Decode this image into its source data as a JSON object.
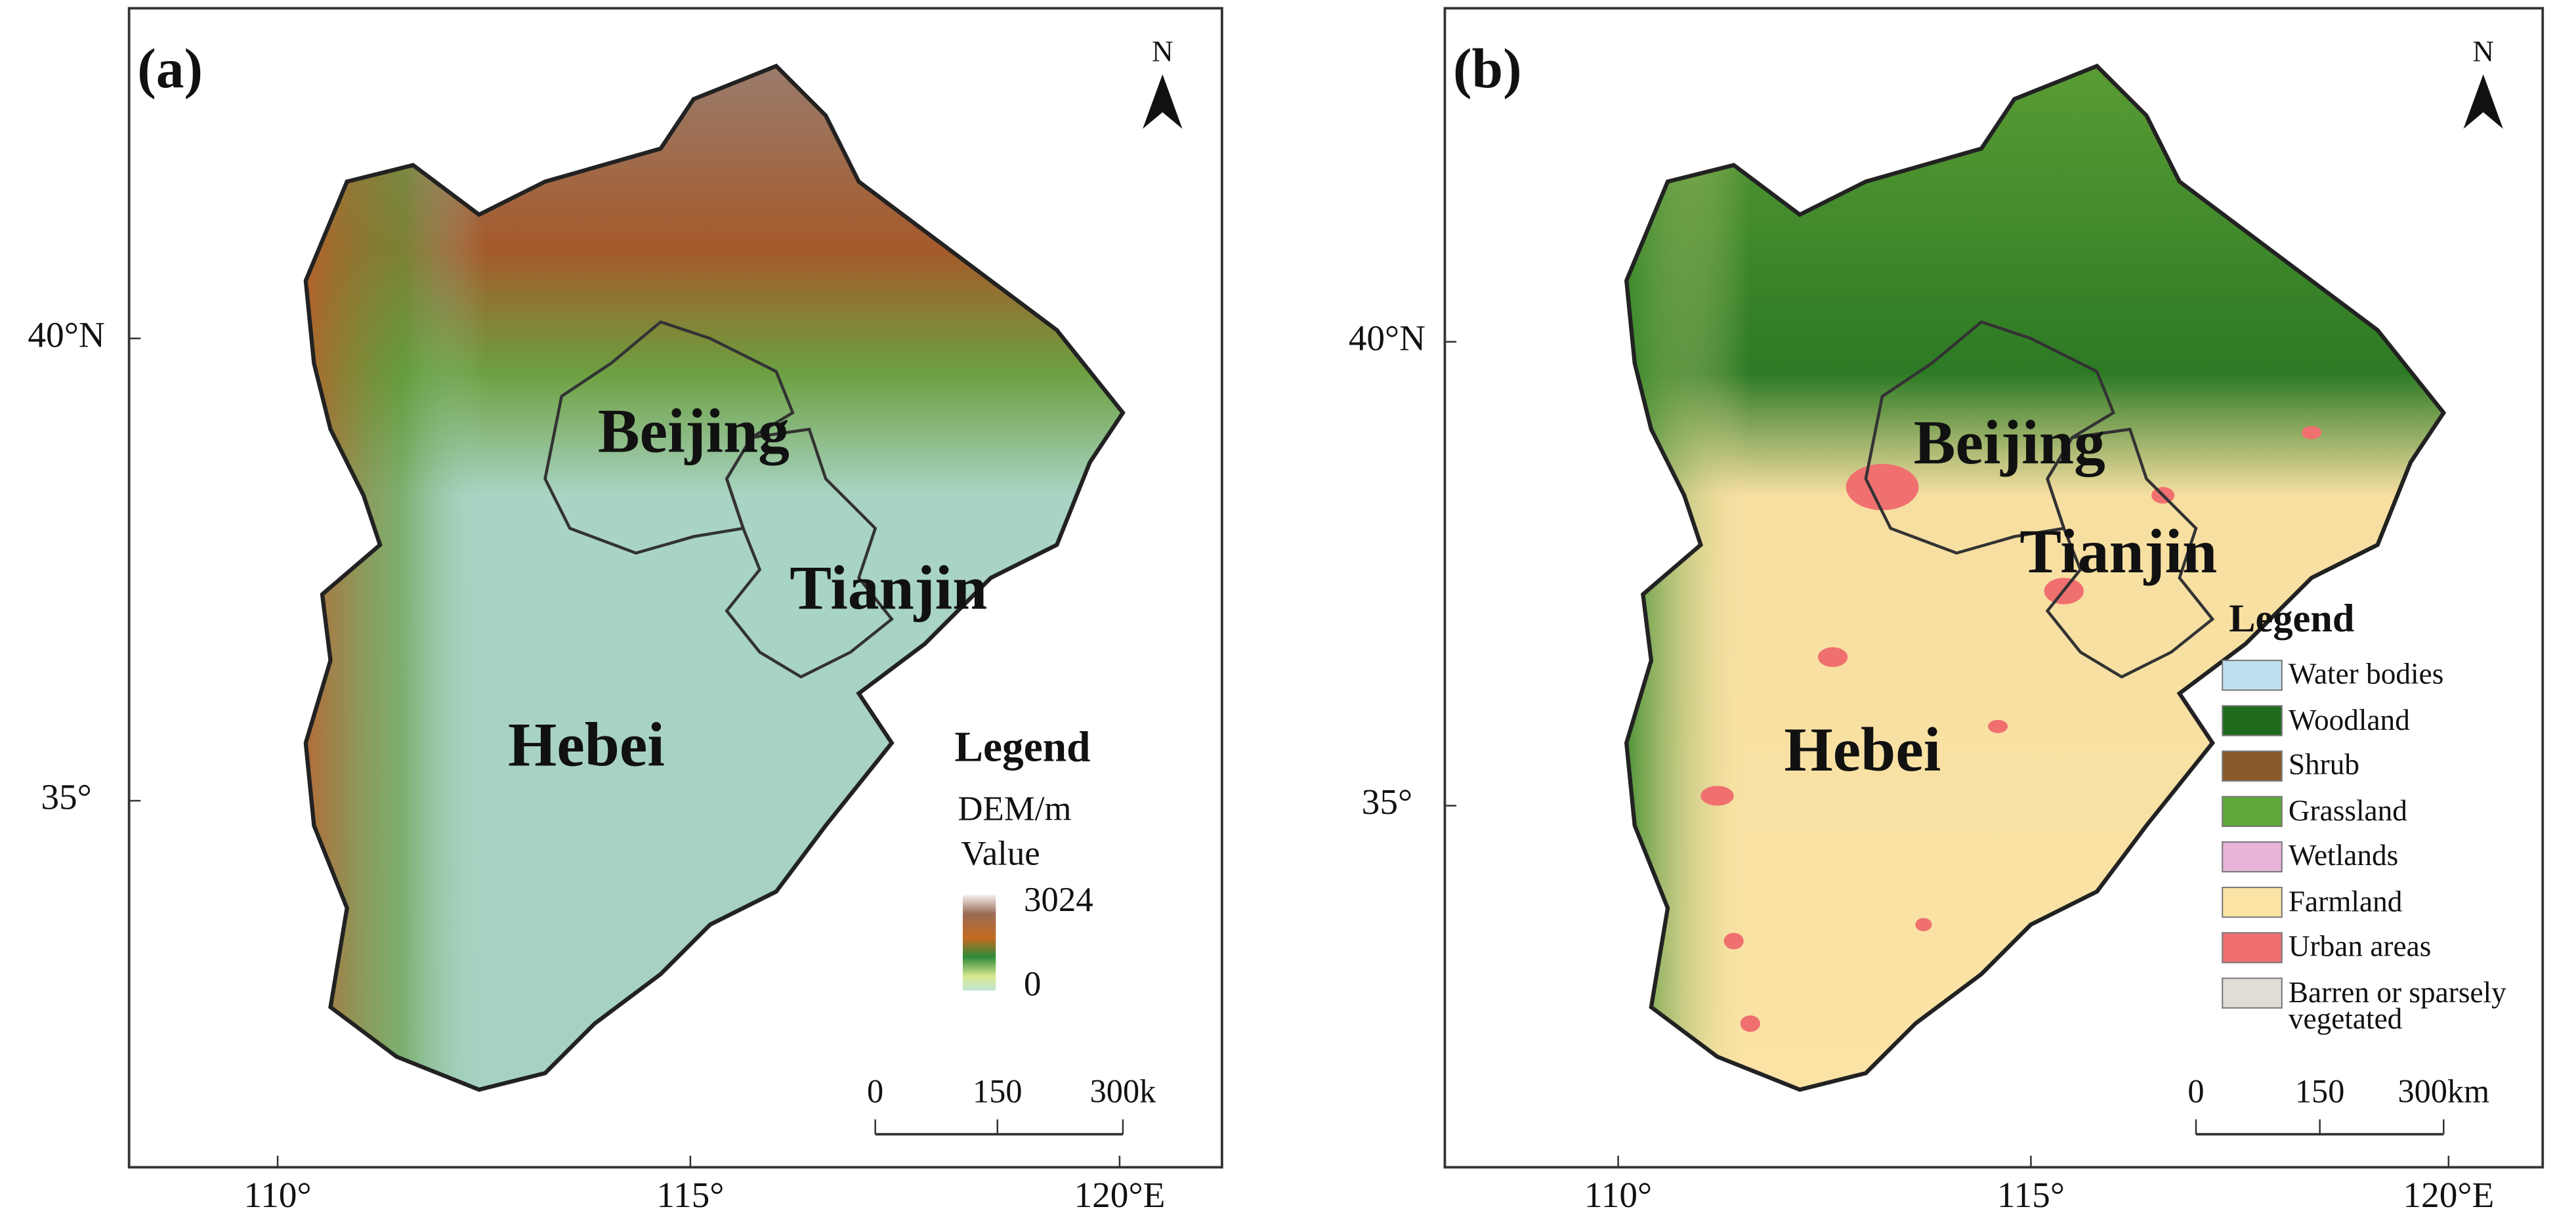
{
  "panels": [
    {
      "label": "(a)",
      "north": "N",
      "lat_ticks": [
        "40°N",
        "35°"
      ],
      "lon_ticks": [
        "110°",
        "115°",
        "120°E"
      ],
      "regions": [
        "Beijing",
        "Tianjin",
        "Hebei"
      ],
      "legend": {
        "title": "Legend",
        "subtitle": "DEM/m",
        "value_label": "Value",
        "max": 3024,
        "min": 0
      },
      "scale_bar": [
        "0",
        "150",
        "300k"
      ]
    },
    {
      "label": "(b)",
      "north": "N",
      "lat_ticks": [
        "40°N",
        "35°"
      ],
      "lon_ticks": [
        "110°",
        "115°",
        "120°E"
      ],
      "regions": [
        "Beijing",
        "Tianjin",
        "Hebei"
      ],
      "legend": {
        "title": "Legend",
        "items": [
          {
            "label": "Water bodies",
            "color": "#bfe0f0"
          },
          {
            "label": "Woodland",
            "color": "#1e6b1e"
          },
          {
            "label": "Shrub",
            "color": "#8b5a2b"
          },
          {
            "label": "Grassland",
            "color": "#5fa83a"
          },
          {
            "label": "Wetlands",
            "color": "#e8b4d8"
          },
          {
            "label": "Farmland",
            "color": "#fae3a5"
          },
          {
            "label": "Urban areas",
            "color": "#f07070"
          },
          {
            "label": "Barren or sparsely vegetated",
            "color": "#e0dcd6"
          }
        ]
      },
      "scale_bar": [
        "0",
        "150",
        "300km"
      ]
    }
  ]
}
